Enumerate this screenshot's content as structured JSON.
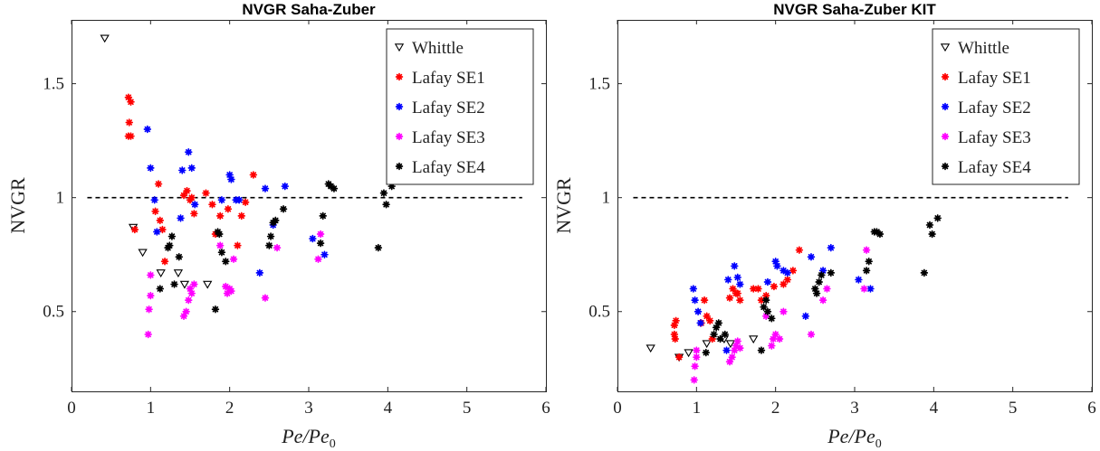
{
  "chart_data": [
    {
      "type": "scatter",
      "title": "NVGR Saha-Zuber",
      "xlabel": "Pe/Pe",
      "xlabel_sub": "0",
      "ylabel": "NVGR",
      "xlim": [
        0,
        6
      ],
      "ylim": [
        0.15,
        1.78
      ],
      "xticks": [
        "0",
        "1",
        "2",
        "3",
        "4",
        "5",
        "6"
      ],
      "yticks": [
        "0.5",
        "1",
        "1.5"
      ],
      "reference_line": {
        "y": 1,
        "x": [
          0.2,
          5.7
        ],
        "style": "dashed"
      },
      "legend_position": "top-right",
      "series": [
        {
          "name": "Whittle",
          "marker": "triangle-down",
          "color": "#000000",
          "points": [
            [
              0.42,
              1.7
            ],
            [
              0.78,
              0.87
            ],
            [
              0.9,
              0.76
            ],
            [
              1.13,
              0.67
            ],
            [
              1.35,
              0.67
            ],
            [
              1.43,
              0.62
            ],
            [
              1.72,
              0.62
            ]
          ]
        },
        {
          "name": "Lafay SE1",
          "marker": "asterisk",
          "color": "#ff0000",
          "points": [
            [
              0.72,
              1.44
            ],
            [
              0.75,
              1.42
            ],
            [
              0.73,
              1.33
            ],
            [
              0.72,
              1.27
            ],
            [
              0.75,
              1.27
            ],
            [
              0.8,
              0.86
            ],
            [
              1.06,
              0.94
            ],
            [
              1.1,
              1.06
            ],
            [
              1.12,
              0.9
            ],
            [
              1.15,
              0.86
            ],
            [
              1.18,
              0.72
            ],
            [
              1.42,
              1.01
            ],
            [
              1.46,
              1.03
            ],
            [
              1.5,
              0.99
            ],
            [
              1.52,
              1.0
            ],
            [
              1.55,
              0.93
            ],
            [
              1.7,
              1.02
            ],
            [
              1.78,
              0.97
            ],
            [
              1.82,
              0.84
            ],
            [
              1.88,
              0.92
            ],
            [
              1.98,
              0.95
            ],
            [
              2.1,
              0.79
            ],
            [
              2.15,
              0.92
            ],
            [
              2.2,
              0.98
            ],
            [
              2.3,
              1.1
            ]
          ]
        },
        {
          "name": "Lafay SE2",
          "marker": "asterisk",
          "color": "#0000ff",
          "points": [
            [
              0.96,
              1.3
            ],
            [
              1.0,
              1.13
            ],
            [
              1.05,
              0.99
            ],
            [
              1.08,
              0.85
            ],
            [
              1.38,
              0.91
            ],
            [
              1.4,
              1.12
            ],
            [
              1.48,
              1.2
            ],
            [
              1.52,
              1.13
            ],
            [
              1.56,
              0.97
            ],
            [
              1.9,
              0.99
            ],
            [
              2.0,
              1.1
            ],
            [
              2.02,
              1.08
            ],
            [
              2.08,
              0.99
            ],
            [
              2.12,
              0.99
            ],
            [
              2.38,
              0.67
            ],
            [
              2.45,
              1.04
            ],
            [
              2.55,
              0.88
            ],
            [
              2.7,
              1.05
            ],
            [
              3.05,
              0.82
            ],
            [
              3.2,
              0.75
            ]
          ]
        },
        {
          "name": "Lafay SE3",
          "marker": "asterisk",
          "color": "#ff00ff",
          "points": [
            [
              0.97,
              0.4
            ],
            [
              0.98,
              0.51
            ],
            [
              1.0,
              0.57
            ],
            [
              1.0,
              0.66
            ],
            [
              1.42,
              0.48
            ],
            [
              1.45,
              0.5
            ],
            [
              1.48,
              0.55
            ],
            [
              1.5,
              0.6
            ],
            [
              1.52,
              0.58
            ],
            [
              1.55,
              0.62
            ],
            [
              1.88,
              0.79
            ],
            [
              1.95,
              0.61
            ],
            [
              1.97,
              0.58
            ],
            [
              2.0,
              0.6
            ],
            [
              2.02,
              0.59
            ],
            [
              2.05,
              0.73
            ],
            [
              2.45,
              0.56
            ],
            [
              2.6,
              0.78
            ],
            [
              3.12,
              0.73
            ],
            [
              3.15,
              0.84
            ]
          ]
        },
        {
          "name": "Lafay SE4",
          "marker": "asterisk",
          "color": "#000000",
          "points": [
            [
              1.12,
              0.6
            ],
            [
              1.22,
              0.78
            ],
            [
              1.24,
              0.79
            ],
            [
              1.27,
              0.83
            ],
            [
              1.3,
              0.62
            ],
            [
              1.36,
              0.74
            ],
            [
              1.82,
              0.51
            ],
            [
              1.85,
              0.85
            ],
            [
              1.87,
              0.84
            ],
            [
              1.9,
              0.76
            ],
            [
              1.95,
              0.72
            ],
            [
              2.5,
              0.79
            ],
            [
              2.52,
              0.83
            ],
            [
              2.55,
              0.89
            ],
            [
              2.58,
              0.9
            ],
            [
              2.68,
              0.95
            ],
            [
              3.15,
              0.8
            ],
            [
              3.18,
              0.92
            ],
            [
              3.25,
              1.06
            ],
            [
              3.28,
              1.05
            ],
            [
              3.32,
              1.04
            ],
            [
              3.88,
              0.78
            ],
            [
              3.95,
              1.02
            ],
            [
              3.98,
              0.97
            ],
            [
              4.05,
              1.05
            ]
          ]
        }
      ]
    },
    {
      "type": "scatter",
      "title": "NVGR Saha-Zuber KIT",
      "xlabel": "Pe/Pe",
      "xlabel_sub": "0",
      "ylabel": "NVGR",
      "xlim": [
        0,
        6
      ],
      "ylim": [
        0.15,
        1.78
      ],
      "xticks": [
        "0",
        "1",
        "2",
        "3",
        "4",
        "5",
        "6"
      ],
      "yticks": [
        "0.5",
        "1",
        "1.5"
      ],
      "reference_line": {
        "y": 1,
        "x": [
          0.2,
          5.7
        ],
        "style": "dashed"
      },
      "legend_position": "top-right",
      "series": [
        {
          "name": "Whittle",
          "marker": "triangle-down",
          "color": "#000000",
          "points": [
            [
              0.42,
              0.34
            ],
            [
              0.78,
              0.3
            ],
            [
              0.9,
              0.32
            ],
            [
              1.13,
              0.36
            ],
            [
              1.35,
              0.38
            ],
            [
              1.43,
              0.36
            ],
            [
              1.72,
              0.38
            ]
          ]
        },
        {
          "name": "Lafay SE1",
          "marker": "asterisk",
          "color": "#ff0000",
          "points": [
            [
              0.72,
              0.44
            ],
            [
              0.74,
              0.46
            ],
            [
              0.72,
              0.4
            ],
            [
              0.73,
              0.38
            ],
            [
              0.78,
              0.3
            ],
            [
              1.06,
              0.45
            ],
            [
              1.1,
              0.55
            ],
            [
              1.13,
              0.48
            ],
            [
              1.17,
              0.46
            ],
            [
              1.2,
              0.38
            ],
            [
              1.42,
              0.56
            ],
            [
              1.46,
              0.6
            ],
            [
              1.5,
              0.58
            ],
            [
              1.52,
              0.58
            ],
            [
              1.55,
              0.55
            ],
            [
              1.72,
              0.6
            ],
            [
              1.78,
              0.6
            ],
            [
              1.82,
              0.55
            ],
            [
              1.88,
              0.57
            ],
            [
              1.98,
              0.61
            ],
            [
              2.1,
              0.62
            ],
            [
              2.15,
              0.64
            ],
            [
              2.22,
              0.68
            ],
            [
              2.3,
              0.77
            ]
          ]
        },
        {
          "name": "Lafay SE2",
          "marker": "asterisk",
          "color": "#0000ff",
          "points": [
            [
              0.96,
              0.6
            ],
            [
              0.98,
              0.55
            ],
            [
              1.02,
              0.5
            ],
            [
              1.05,
              0.45
            ],
            [
              1.38,
              0.33
            ],
            [
              1.4,
              0.64
            ],
            [
              1.48,
              0.7
            ],
            [
              1.52,
              0.65
            ],
            [
              1.55,
              0.62
            ],
            [
              1.9,
              0.63
            ],
            [
              2.0,
              0.72
            ],
            [
              2.02,
              0.7
            ],
            [
              2.1,
              0.68
            ],
            [
              2.15,
              0.67
            ],
            [
              2.38,
              0.48
            ],
            [
              2.45,
              0.74
            ],
            [
              2.6,
              0.68
            ],
            [
              2.7,
              0.78
            ],
            [
              3.05,
              0.64
            ],
            [
              3.2,
              0.6
            ]
          ]
        },
        {
          "name": "Lafay SE3",
          "marker": "asterisk",
          "color": "#ff00ff",
          "points": [
            [
              0.97,
              0.2
            ],
            [
              0.98,
              0.26
            ],
            [
              1.0,
              0.3
            ],
            [
              1.0,
              0.33
            ],
            [
              1.42,
              0.28
            ],
            [
              1.45,
              0.3
            ],
            [
              1.48,
              0.33
            ],
            [
              1.5,
              0.35
            ],
            [
              1.52,
              0.37
            ],
            [
              1.55,
              0.34
            ],
            [
              1.88,
              0.48
            ],
            [
              1.95,
              0.35
            ],
            [
              1.97,
              0.38
            ],
            [
              2.0,
              0.4
            ],
            [
              2.05,
              0.38
            ],
            [
              2.1,
              0.5
            ],
            [
              2.45,
              0.4
            ],
            [
              2.6,
              0.55
            ],
            [
              2.65,
              0.6
            ],
            [
              3.12,
              0.6
            ],
            [
              3.15,
              0.77
            ]
          ]
        },
        {
          "name": "Lafay SE4",
          "marker": "asterisk",
          "color": "#000000",
          "points": [
            [
              1.12,
              0.32
            ],
            [
              1.22,
              0.4
            ],
            [
              1.25,
              0.43
            ],
            [
              1.28,
              0.45
            ],
            [
              1.3,
              0.38
            ],
            [
              1.36,
              0.4
            ],
            [
              1.82,
              0.33
            ],
            [
              1.85,
              0.52
            ],
            [
              1.88,
              0.55
            ],
            [
              1.9,
              0.5
            ],
            [
              1.95,
              0.47
            ],
            [
              2.5,
              0.6
            ],
            [
              2.52,
              0.58
            ],
            [
              2.55,
              0.63
            ],
            [
              2.58,
              0.66
            ],
            [
              2.7,
              0.67
            ],
            [
              3.15,
              0.68
            ],
            [
              3.18,
              0.72
            ],
            [
              3.25,
              0.85
            ],
            [
              3.28,
              0.85
            ],
            [
              3.32,
              0.84
            ],
            [
              3.88,
              0.67
            ],
            [
              3.95,
              0.88
            ],
            [
              3.98,
              0.84
            ],
            [
              4.05,
              0.91
            ]
          ]
        }
      ]
    }
  ]
}
